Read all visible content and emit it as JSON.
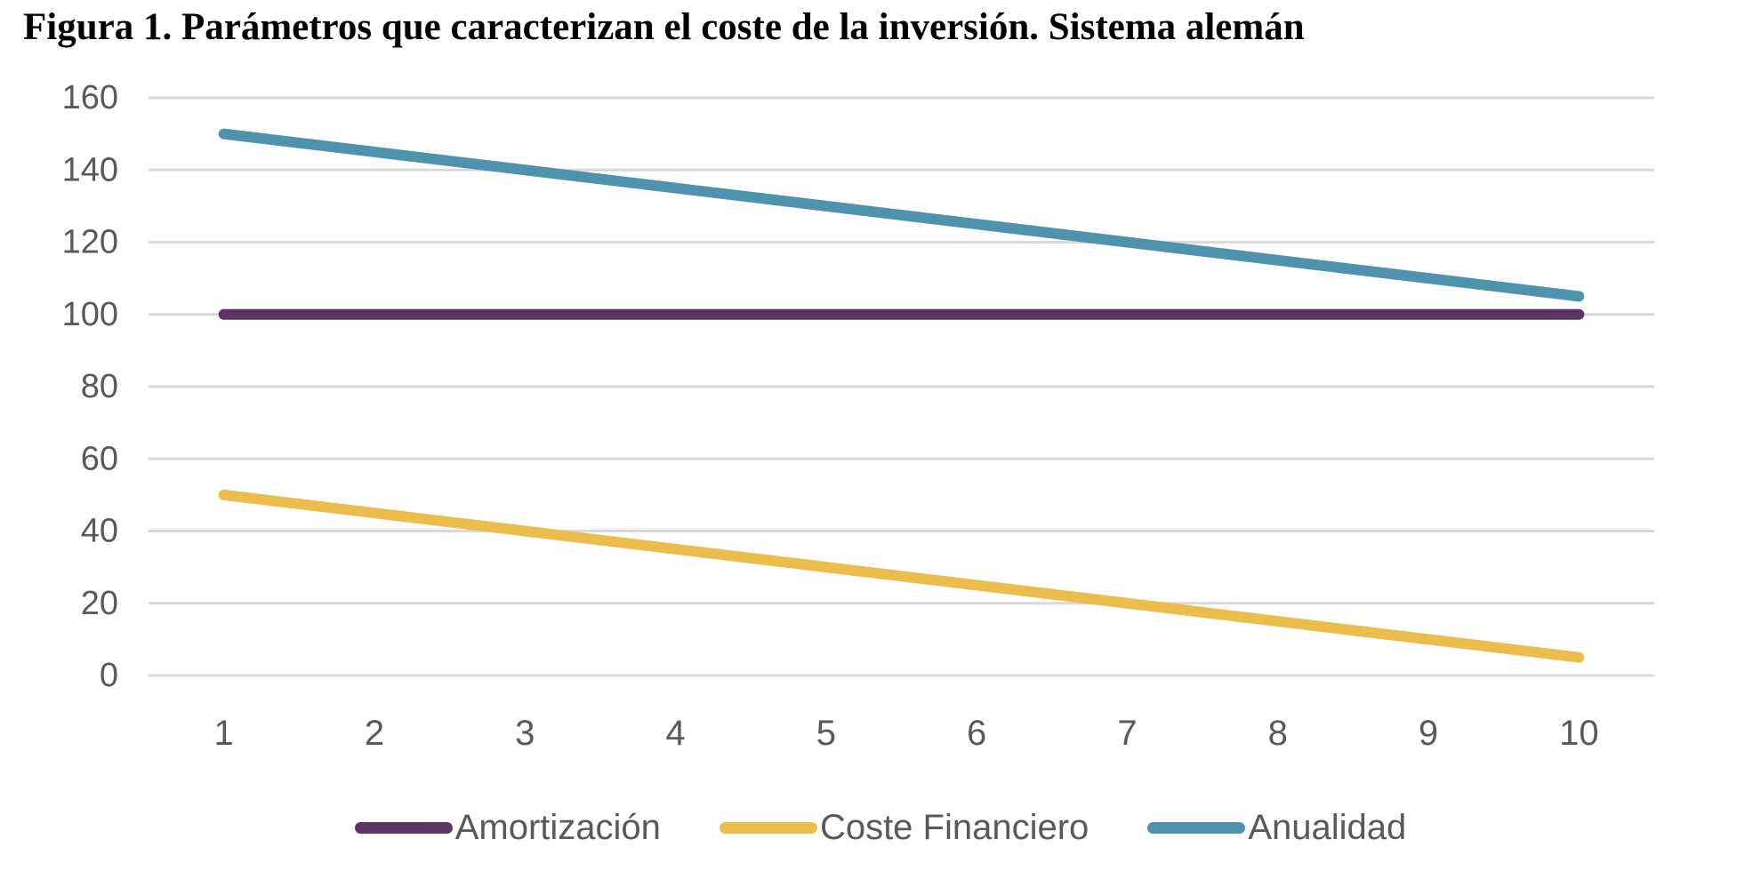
{
  "chart_data": {
    "type": "line",
    "title": "Figura 1. Parámetros que caracterizan el coste de la inversión. Sistema alemán",
    "x": [
      1,
      2,
      3,
      4,
      5,
      6,
      7,
      8,
      9,
      10
    ],
    "xlabel": "",
    "ylabel": "",
    "ylim": [
      0,
      160
    ],
    "yticks": [
      0,
      20,
      40,
      60,
      80,
      100,
      120,
      140,
      160
    ],
    "grid": "horizontal-only",
    "legend_position": "bottom",
    "series": [
      {
        "name": "Amortización",
        "color": "#5C3566",
        "values": [
          100,
          100,
          100,
          100,
          100,
          100,
          100,
          100,
          100,
          100
        ]
      },
      {
        "name": "Coste Financiero",
        "color": "#EBBD4D",
        "values": [
          50,
          45,
          40,
          35,
          30,
          25,
          20,
          15,
          10,
          5
        ]
      },
      {
        "name": "Anualidad",
        "color": "#4F92AE",
        "values": [
          150,
          145,
          140,
          135,
          130,
          125,
          120,
          115,
          110,
          105
        ]
      }
    ],
    "colors": {
      "axis_text": "#595959",
      "gridline": "#D9D9D9",
      "background": "#FFFFFF",
      "title_text": "#000000"
    }
  }
}
